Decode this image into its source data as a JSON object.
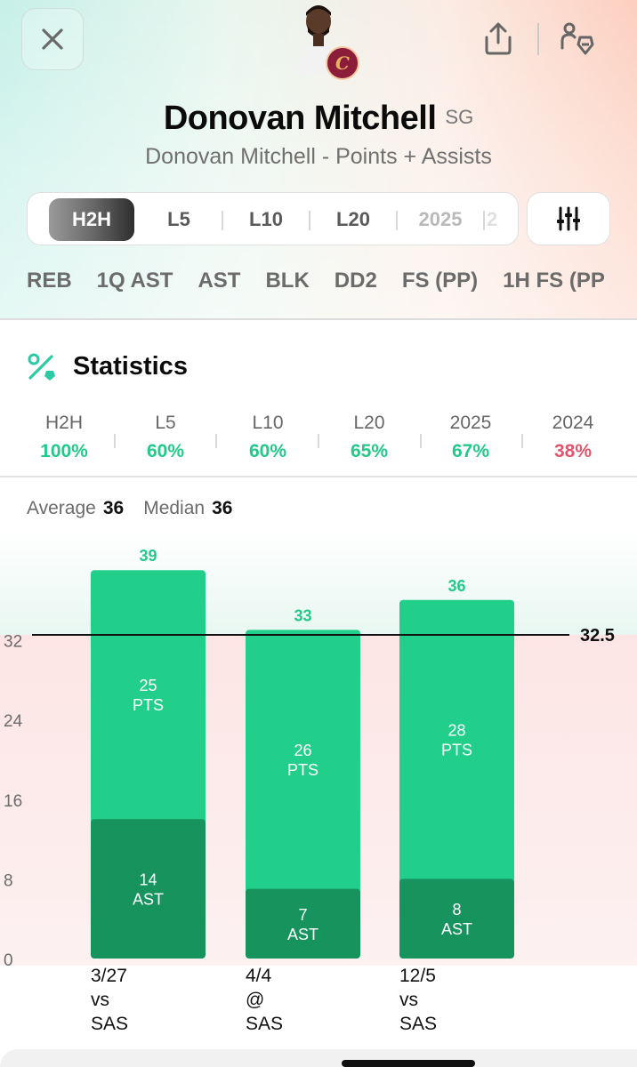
{
  "header": {
    "player_name": "Donovan Mitchell",
    "position": "SG",
    "subtitle": "Donovan Mitchell - Points + Assists",
    "icons": [
      "close-icon",
      "share-icon",
      "favorite-player-icon",
      "team-logo"
    ],
    "team_logo_text": "C"
  },
  "range_tabs": [
    "H2H",
    "L5",
    "L10",
    "L20",
    "2025",
    "2"
  ],
  "active_range_tab": "H2H",
  "stat_tabs": [
    "REB",
    "1Q AST",
    "AST",
    "BLK",
    "DD2",
    "FS (PP)",
    "1H FS (PP"
  ],
  "statistics": {
    "title": "Statistics",
    "hit_rates": [
      {
        "label": "H2H",
        "value": "100%",
        "color": "#22c98a"
      },
      {
        "label": "L5",
        "value": "60%",
        "color": "#22c98a"
      },
      {
        "label": "L10",
        "value": "60%",
        "color": "#22c98a"
      },
      {
        "label": "L20",
        "value": "65%",
        "color": "#22c98a"
      },
      {
        "label": "2025",
        "value": "67%",
        "color": "#22c98a"
      },
      {
        "label": "2024",
        "value": "38%",
        "color": "#e0566f"
      }
    ]
  },
  "summary": {
    "average_label": "Average",
    "average_value": "36",
    "median_label": "Median",
    "median_value": "36"
  },
  "chart_data": {
    "type": "bar",
    "stacked": true,
    "categories": [
      "3/27 vs SAS",
      "4/4 @ SAS",
      "12/5 vs SAS"
    ],
    "category_lines": [
      [
        "3/27",
        "vs",
        "SAS"
      ],
      [
        "4/4",
        "@",
        "SAS"
      ],
      [
        "12/5",
        "vs",
        "SAS"
      ]
    ],
    "series": [
      {
        "name": "AST",
        "values": [
          14,
          7,
          8
        ],
        "color": "#17935e"
      },
      {
        "name": "PTS",
        "values": [
          25,
          26,
          28
        ],
        "color": "#21cf8a"
      }
    ],
    "totals": [
      39,
      33,
      36
    ],
    "line_value": 32.5,
    "line_label": "32.5",
    "y_ticks": [
      0,
      8,
      16,
      24,
      32
    ],
    "ylim": [
      0,
      40
    ]
  },
  "colors": {
    "green": "#22c98a",
    "red": "#e0566f",
    "dark_green": "#17935e"
  }
}
